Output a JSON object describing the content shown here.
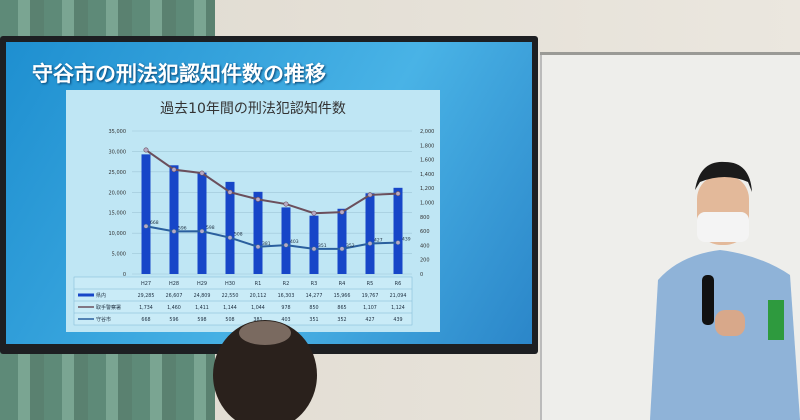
{
  "slide": {
    "title": "守谷市の刑法犯認知件数の推移"
  },
  "chart_data": {
    "type": "bar",
    "title": "過去10年間の刑法犯認知件数",
    "categories": [
      "H27",
      "H28",
      "H29",
      "H30",
      "R1",
      "R2",
      "R3",
      "R4",
      "R5",
      "R6"
    ],
    "series": [
      {
        "name": "県内",
        "type": "bar",
        "axis": "left",
        "values": [
          29285,
          26607,
          24809,
          22550,
          20112,
          16303,
          14277,
          15966,
          19767,
          21094
        ],
        "color": "#1746c8"
      },
      {
        "name": "取手警察署",
        "type": "line",
        "axis": "right",
        "values": [
          1734,
          1460,
          1411,
          1144,
          1044,
          978,
          850,
          865,
          1107,
          1124
        ],
        "color": "#6b4f5c"
      },
      {
        "name": "守谷市",
        "type": "line",
        "axis": "right",
        "values": [
          668,
          596,
          598,
          508,
          381,
          403,
          351,
          352,
          427,
          439
        ],
        "color": "#2a5f9e"
      }
    ],
    "left_axis": {
      "ylim": [
        0,
        35000
      ],
      "ticks": [
        "0",
        "5,000",
        "10,000",
        "15,000",
        "20,000",
        "25,000",
        "30,000",
        "35,000"
      ]
    },
    "right_axis": {
      "ylim": [
        0,
        2000
      ],
      "ticks": [
        "0",
        "200",
        "400",
        "600",
        "800",
        "1,000",
        "1,200",
        "1,400",
        "1,600",
        "1,800",
        "2,000"
      ]
    },
    "grid": true,
    "legend": "data-table-below"
  }
}
